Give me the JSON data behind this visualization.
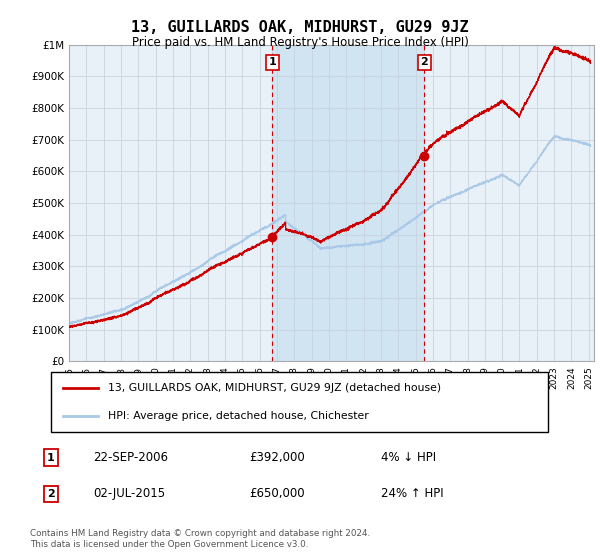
{
  "title": "13, GUILLARDS OAK, MIDHURST, GU29 9JZ",
  "subtitle": "Price paid vs. HM Land Registry's House Price Index (HPI)",
  "hpi_color": "#a8c8e8",
  "sale_color": "#cc0000",
  "marker_color": "#cc0000",
  "background_color": "#ffffff",
  "plot_bg_color": "#e8f0f8",
  "highlight_color": "#ddeeff",
  "grid_color": "#c8d4e0",
  "ylim": [
    0,
    1000000
  ],
  "yticks": [
    0,
    100000,
    200000,
    300000,
    400000,
    500000,
    600000,
    700000,
    800000,
    900000,
    1000000
  ],
  "ytick_labels": [
    "£0",
    "£100K",
    "£200K",
    "£300K",
    "£400K",
    "£500K",
    "£600K",
    "£700K",
    "£800K",
    "£900K",
    "£1M"
  ],
  "x_start_year": 1995,
  "x_end_year": 2025,
  "sale1_year": 2006.73,
  "sale1_price": 392000,
  "sale1_label": "1",
  "sale1_date": "22-SEP-2006",
  "sale1_pct": "4% ↓ HPI",
  "sale2_year": 2015.5,
  "sale2_price": 650000,
  "sale2_label": "2",
  "sale2_date": "02-JUL-2015",
  "sale2_pct": "24% ↑ HPI",
  "legend_line1": "13, GUILLARDS OAK, MIDHURST, GU29 9JZ (detached house)",
  "legend_line2": "HPI: Average price, detached house, Chichester",
  "footer": "Contains HM Land Registry data © Crown copyright and database right 2024.\nThis data is licensed under the Open Government Licence v3.0.",
  "annotation_box_color": "#cc0000",
  "annotation_box_fill": "#ffffff"
}
